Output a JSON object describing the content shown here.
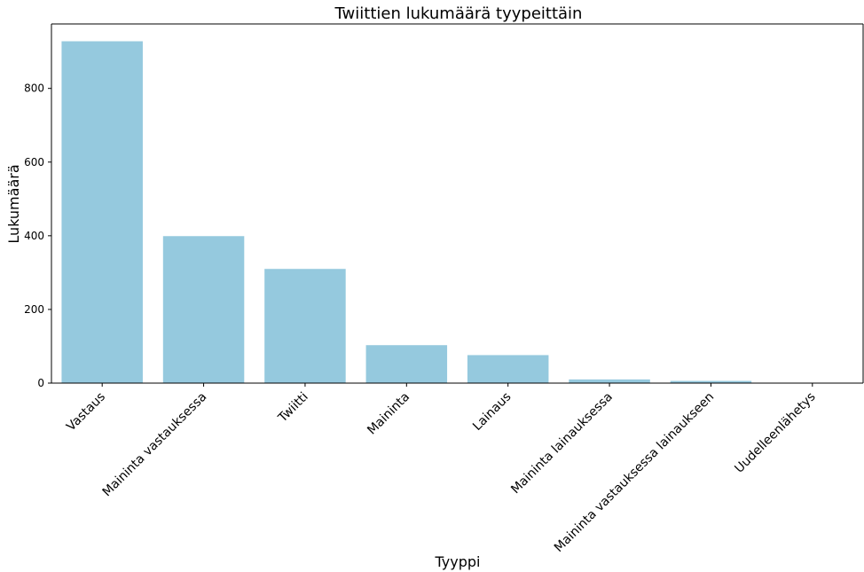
{
  "chart_data": {
    "type": "bar",
    "title": "Twiittien lukumäärä tyypeittäin",
    "xlabel": "Tyyppi",
    "ylabel": "Lukumäärä",
    "categories": [
      "Vastaus",
      "Maininta vastauksessa",
      "Twiitti",
      "Maininta",
      "Lainaus",
      "Maininta lainauksessa",
      "Maininta vastauksessa lainaukseen",
      "Uudelleenlähetys"
    ],
    "values": [
      928,
      399,
      310,
      103,
      76,
      10,
      6,
      0
    ],
    "yticks": [
      0,
      200,
      400,
      600,
      800
    ],
    "ylim": [
      0,
      975
    ],
    "bar_color": "#95c9de",
    "grid": false
  }
}
